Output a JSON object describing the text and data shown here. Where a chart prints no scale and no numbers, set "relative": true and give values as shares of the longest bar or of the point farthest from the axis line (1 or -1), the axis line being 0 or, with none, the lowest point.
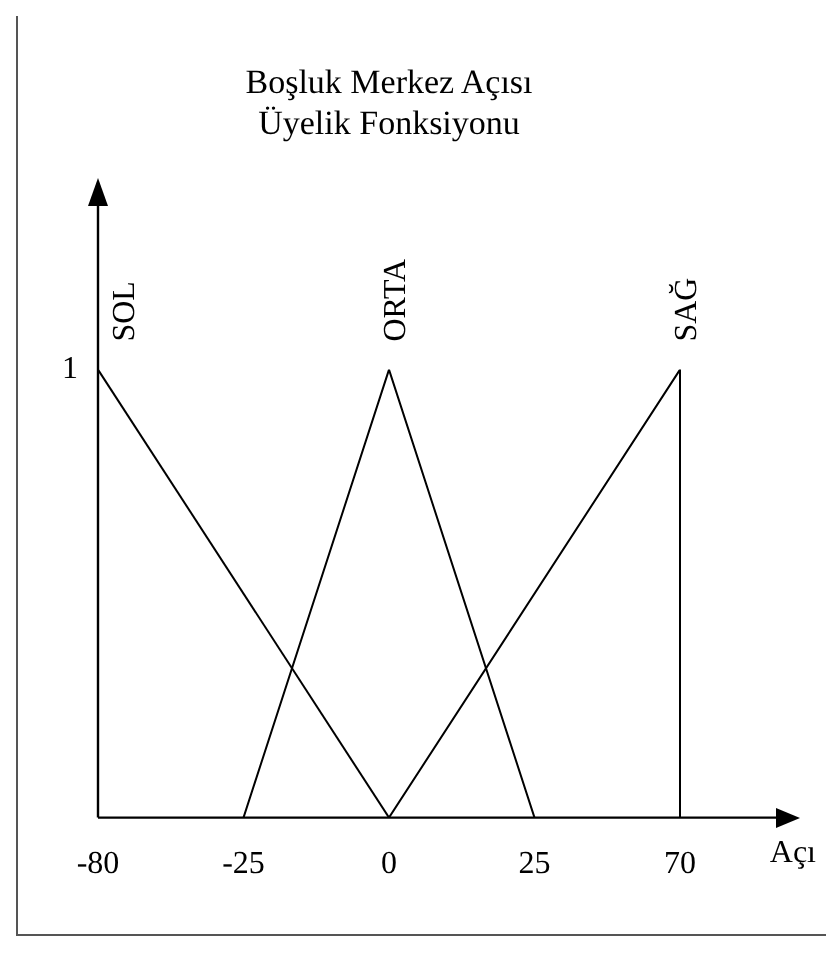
{
  "chart_data": {
    "type": "line",
    "title": "Boşluk Merkez Açısı\nÜyelik Fonksiyonu",
    "xlabel": "Açı",
    "categories": [
      "-80",
      "-25",
      "0",
      "25",
      "70"
    ],
    "series": [
      {
        "name": "SOL",
        "color": "#000000",
        "x": [
          "-80",
          "0"
        ],
        "values": [
          1,
          0
        ]
      },
      {
        "name": "ORTA",
        "color": "#000000",
        "x": [
          "-25",
          "0",
          "25"
        ],
        "values": [
          0,
          1,
          0
        ]
      },
      {
        "name": "SAĞ",
        "color": "#000000",
        "x": [
          "0",
          "70",
          "70"
        ],
        "values": [
          0,
          1,
          0
        ]
      }
    ],
    "relative": true,
    "annotations": [
      {
        "text": "1",
        "x": "-80",
        "y": 1
      }
    ],
    "grid": false,
    "legend": false,
    "marker": "none",
    "line_style": "solid"
  }
}
